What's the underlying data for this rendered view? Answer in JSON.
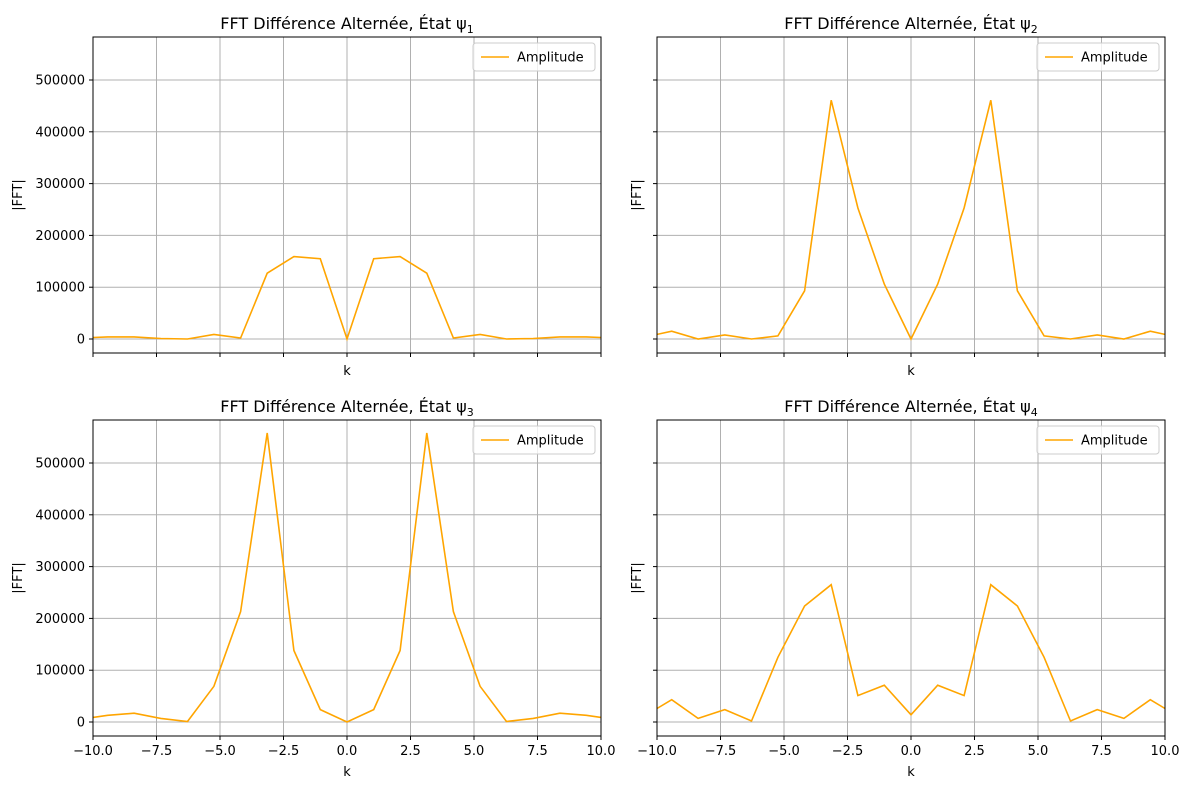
{
  "chart_data": [
    {
      "type": "line",
      "title": "FFT Différence Alternée, État ψ",
      "title_subscript": "1",
      "xlabel": "k",
      "ylabel": "|FFT|",
      "xlim": [
        -10,
        10
      ],
      "ylim": [
        -27000,
        583000
      ],
      "xticks": [
        -10.0,
        -7.5,
        -5.0,
        -2.5,
        0.0,
        2.5,
        5.0,
        7.5,
        10.0
      ],
      "xtick_labels": [],
      "yticks": [
        0,
        100000,
        200000,
        300000,
        400000,
        500000
      ],
      "ytick_labels": [
        "0",
        "100000",
        "200000",
        "300000",
        "400000",
        "500000"
      ],
      "grid": true,
      "legend_position": "top-right",
      "series": [
        {
          "name": "Amplitude",
          "color": "#ffa500",
          "x": [
            -10.0,
            -9.42,
            -8.38,
            -7.33,
            -6.28,
            -5.24,
            -4.19,
            -3.14,
            -2.09,
            -1.05,
            0.0,
            1.05,
            2.09,
            3.14,
            4.19,
            5.24,
            6.28,
            7.33,
            8.38,
            9.42,
            10.0
          ],
          "y": [
            3000,
            4000,
            4000,
            1000,
            0,
            9000,
            2000,
            127000,
            159000,
            155000,
            0,
            155000,
            159000,
            127000,
            2000,
            9000,
            0,
            1000,
            4000,
            4000,
            3000
          ]
        }
      ]
    },
    {
      "type": "line",
      "title": "FFT Différence Alternée, État ψ",
      "title_subscript": "2",
      "xlabel": "k",
      "ylabel": "|FFT|",
      "xlim": [
        -10,
        10
      ],
      "ylim": [
        -27000,
        583000
      ],
      "xticks": [
        -10.0,
        -7.5,
        -5.0,
        -2.5,
        0.0,
        2.5,
        5.0,
        7.5,
        10.0
      ],
      "xtick_labels": [],
      "yticks": [
        0,
        100000,
        200000,
        300000,
        400000,
        500000
      ],
      "ytick_labels": [],
      "grid": true,
      "legend_position": "top-right",
      "series": [
        {
          "name": "Amplitude",
          "color": "#ffa500",
          "x": [
            -10.0,
            -9.42,
            -8.38,
            -7.33,
            -6.28,
            -5.24,
            -4.19,
            -3.14,
            -2.09,
            -1.05,
            0.0,
            1.05,
            2.09,
            3.14,
            4.19,
            5.24,
            6.28,
            7.33,
            8.38,
            9.42,
            10.0
          ],
          "y": [
            9000,
            15000,
            0,
            8000,
            0,
            6000,
            93000,
            461000,
            253000,
            106000,
            0,
            106000,
            253000,
            461000,
            93000,
            6000,
            0,
            8000,
            0,
            15000,
            9000
          ]
        }
      ]
    },
    {
      "type": "line",
      "title": "FFT Différence Alternée, État ψ",
      "title_subscript": "3",
      "xlabel": "k",
      "ylabel": "|FFT|",
      "xlim": [
        -10,
        10
      ],
      "ylim": [
        -27000,
        583000
      ],
      "xticks": [
        -10.0,
        -7.5,
        -5.0,
        -2.5,
        0.0,
        2.5,
        5.0,
        7.5,
        10.0
      ],
      "xtick_labels": [
        "−10.0",
        "−7.5",
        "−5.0",
        "−2.5",
        "0.0",
        "2.5",
        "5.0",
        "7.5",
        "10.0"
      ],
      "yticks": [
        0,
        100000,
        200000,
        300000,
        400000,
        500000
      ],
      "ytick_labels": [
        "0",
        "100000",
        "200000",
        "300000",
        "400000",
        "500000"
      ],
      "grid": true,
      "legend_position": "top-right",
      "series": [
        {
          "name": "Amplitude",
          "color": "#ffa500",
          "x": [
            -10.0,
            -9.42,
            -8.38,
            -7.33,
            -6.28,
            -5.24,
            -4.19,
            -3.14,
            -2.09,
            -1.05,
            0.0,
            1.05,
            2.09,
            3.14,
            4.19,
            5.24,
            6.28,
            7.33,
            8.38,
            9.42,
            10.0
          ],
          "y": [
            9000,
            13000,
            17000,
            7000,
            1000,
            69000,
            213000,
            558000,
            138000,
            24000,
            0,
            24000,
            138000,
            558000,
            213000,
            69000,
            1000,
            7000,
            17000,
            13000,
            9000
          ]
        }
      ]
    },
    {
      "type": "line",
      "title": "FFT Différence Alternée, État ψ",
      "title_subscript": "4",
      "xlabel": "k",
      "ylabel": "|FFT|",
      "xlim": [
        -10,
        10
      ],
      "ylim": [
        -27000,
        583000
      ],
      "xticks": [
        -10.0,
        -7.5,
        -5.0,
        -2.5,
        0.0,
        2.5,
        5.0,
        7.5,
        10.0
      ],
      "xtick_labels": [
        "−10.0",
        "−7.5",
        "−5.0",
        "−2.5",
        "0.0",
        "2.5",
        "5.0",
        "7.5",
        "10.0"
      ],
      "yticks": [
        0,
        100000,
        200000,
        300000,
        400000,
        500000
      ],
      "ytick_labels": [],
      "grid": true,
      "legend_position": "top-right",
      "series": [
        {
          "name": "Amplitude",
          "color": "#ffa500",
          "x": [
            -10.0,
            -9.42,
            -8.38,
            -7.33,
            -6.28,
            -5.24,
            -4.19,
            -3.14,
            -2.09,
            -1.05,
            0.0,
            1.05,
            2.09,
            3.14,
            4.19,
            5.24,
            6.28,
            7.33,
            8.38,
            9.42,
            10.0
          ],
          "y": [
            26000,
            43000,
            7000,
            24000,
            2000,
            125000,
            224000,
            265000,
            51000,
            71000,
            14000,
            71000,
            51000,
            265000,
            224000,
            125000,
            2000,
            24000,
            7000,
            43000,
            26000
          ]
        }
      ]
    }
  ],
  "colors": {
    "grid": "#b0b0b0",
    "axes": "#000000",
    "line": "#ffa500",
    "legend_border": "#cccccc"
  }
}
